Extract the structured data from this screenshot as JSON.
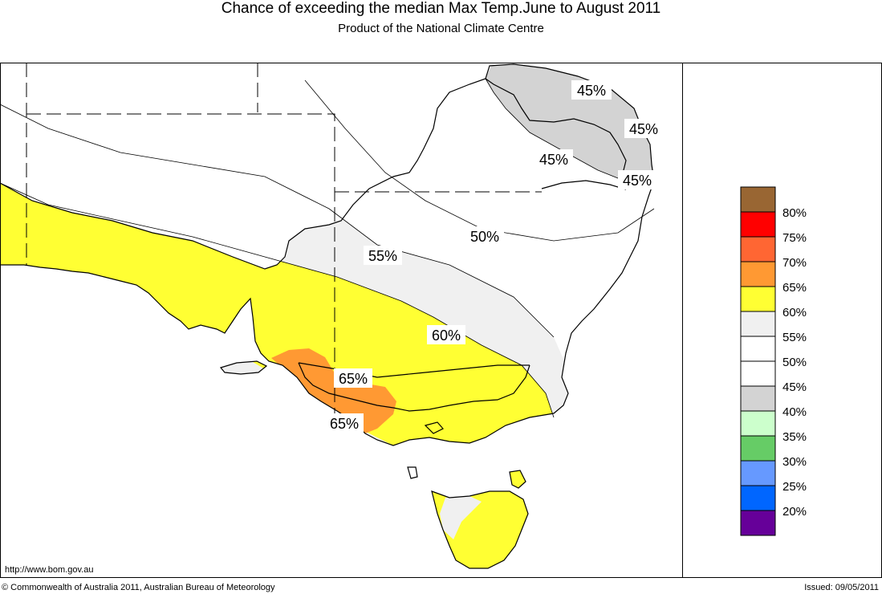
{
  "header": {
    "title": "Chance of exceeding the median Max Temp.June to August 2011",
    "subtitle": "Product of the National Climate Centre"
  },
  "footer": {
    "url": "http://www.bom.gov.au",
    "copyright": "© Commonwealth of Australia 2011, Australian Bureau of Meteorology",
    "issued": "Issued: 09/05/2011"
  },
  "map": {
    "contour_labels": [
      "45%",
      "45%",
      "45%",
      "45%",
      "50%",
      "55%",
      "60%",
      "65%",
      "65%"
    ]
  },
  "legend": {
    "items": [
      {
        "label": "",
        "color": "#996633"
      },
      {
        "label": "80%",
        "color": "#ff0000"
      },
      {
        "label": "75%",
        "color": "#ff6633"
      },
      {
        "label": "70%",
        "color": "#ff9933"
      },
      {
        "label": "65%",
        "color": "#ffff33"
      },
      {
        "label": "60%",
        "color": "#f0f0f0"
      },
      {
        "label": "55%",
        "color": "#ffffff"
      },
      {
        "label": "50%",
        "color": "#ffffff"
      },
      {
        "label": "45%",
        "color": "#d3d3d3"
      },
      {
        "label": "40%",
        "color": "#ccffcc"
      },
      {
        "label": "35%",
        "color": "#66cc66"
      },
      {
        "label": "30%",
        "color": "#6699ff"
      },
      {
        "label": "25%",
        "color": "#0066ff"
      },
      {
        "label": "20%",
        "color": "#660099"
      }
    ]
  }
}
